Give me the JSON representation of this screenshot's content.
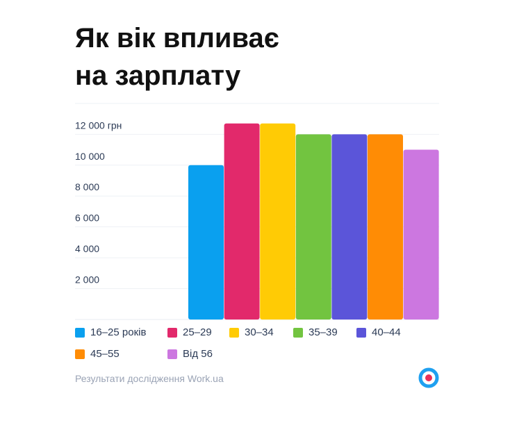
{
  "title_line1": "Як вік впливає",
  "title_line2": "на зарплату",
  "footer": {
    "source": "Результати дослідження Work.ua"
  },
  "logo": {
    "icon": "work-ua-logo-icon",
    "colors": {
      "ring": "#1fa0f0",
      "dot": "#e8305a"
    }
  },
  "chart_data": {
    "type": "bar",
    "title": "Як вік впливає на зарплату",
    "xlabel": "",
    "ylabel": "",
    "ylim": [
      0,
      13500
    ],
    "yticks": [
      2000,
      4000,
      6000,
      8000,
      10000,
      12000
    ],
    "ytick_labels": [
      "2 000",
      "4 000",
      "6 000",
      "8 000",
      "10 000",
      "12 000 грн"
    ],
    "grid": true,
    "legend_placement": "bottom",
    "categories": [
      "16–25 років",
      "25–29",
      "30–34",
      "35–39",
      "40–44",
      "45–55",
      "Від 56"
    ],
    "values": [
      10000,
      12700,
      12700,
      12000,
      12000,
      12000,
      11000
    ],
    "colors": [
      "#0aa0ef",
      "#e2296b",
      "#ffcb05",
      "#72c440",
      "#5b55d9",
      "#ff8c05",
      "#cc77e0"
    ]
  }
}
